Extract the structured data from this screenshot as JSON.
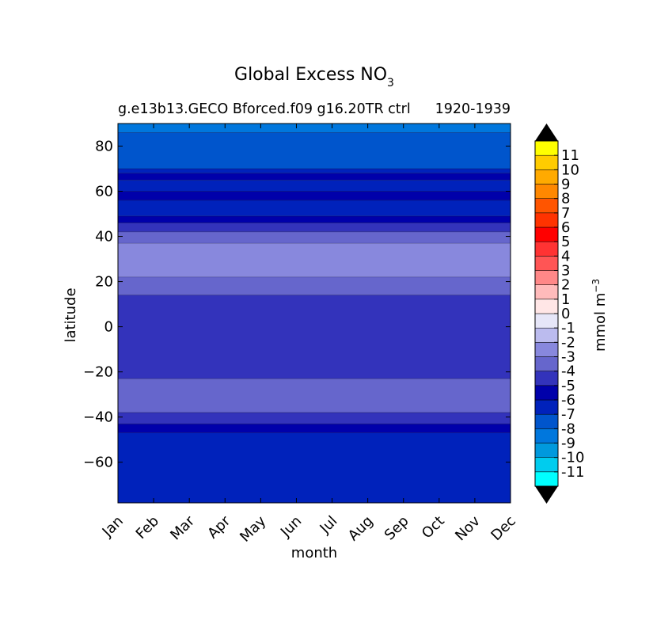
{
  "chart_data": {
    "type": "heatmap",
    "title_main": "Global Excess NO",
    "title_sub": "3",
    "subtitle_left": "g.e13b13.GECO Bforced.f09 g16.20TR ctrl",
    "subtitle_right": "1920-1939",
    "xlabel": "month",
    "ylabel": "latitude",
    "x_ticks": [
      "Jan",
      "Feb",
      "Mar",
      "Apr",
      "May",
      "Jun",
      "Jul",
      "Aug",
      "Sep",
      "Oct",
      "Nov",
      "Dec"
    ],
    "y_ticks": [
      "80",
      "60",
      "40",
      "20",
      "0",
      "−20",
      "−40",
      "−60"
    ],
    "y_tick_values": [
      80,
      60,
      40,
      20,
      0,
      -20,
      -40,
      -60
    ],
    "ylim": [
      -78,
      90
    ],
    "colorbar": {
      "label_main": "mmol m",
      "label_exp": "−3",
      "levels": [
        "-11",
        "-10",
        "-9",
        "-8",
        "-7",
        "-6",
        "-5",
        "-4",
        "-3",
        "-2",
        "-1",
        "0",
        "1",
        "2",
        "3",
        "4",
        "5",
        "6",
        "7",
        "8",
        "9",
        "10",
        "11"
      ],
      "level_values": [
        -11,
        -10,
        -9,
        -8,
        -7,
        -6,
        -5,
        -4,
        -3,
        -2,
        -1,
        0,
        1,
        2,
        3,
        4,
        5,
        6,
        7,
        8,
        9,
        10,
        11
      ],
      "colors": [
        "#00ffff",
        "#00ccee",
        "#0099dd",
        "#0077dd",
        "#0055cc",
        "#0022bb",
        "#0000aa",
        "#3333bb",
        "#6666cc",
        "#8888dd",
        "#bbbbee",
        "#e6e6f8",
        "#ffe6e6",
        "#ffbbbb",
        "#ff8888",
        "#ff5555",
        "#ff3333",
        "#ff0000",
        "#ff3300",
        "#ff5500",
        "#ff8800",
        "#ffaa00",
        "#ffcc00",
        "#ffff00"
      ],
      "extend_colors": [
        "#000000",
        "#000000"
      ]
    },
    "bands": [
      {
        "lat_min": 86,
        "lat_max": 90,
        "value": -8.5,
        "color": "#0077dd"
      },
      {
        "lat_min": 70,
        "lat_max": 86,
        "value": -7.5,
        "color": "#0055cc"
      },
      {
        "lat_min": 68,
        "lat_max": 70,
        "value": -6.5,
        "color": "#0022bb"
      },
      {
        "lat_min": 65,
        "lat_max": 68,
        "value": -5.5,
        "color": "#0000aa"
      },
      {
        "lat_min": 60,
        "lat_max": 65,
        "value": -6.5,
        "color": "#0022bb"
      },
      {
        "lat_min": 56,
        "lat_max": 60,
        "value": -5.5,
        "color": "#0000aa"
      },
      {
        "lat_min": 49,
        "lat_max": 56,
        "value": -6.5,
        "color": "#0022bb"
      },
      {
        "lat_min": 46,
        "lat_max": 49,
        "value": -5.5,
        "color": "#0000aa"
      },
      {
        "lat_min": 42,
        "lat_max": 46,
        "value": -4.5,
        "color": "#3333bb"
      },
      {
        "lat_min": 37,
        "lat_max": 42,
        "value": -3.5,
        "color": "#6666cc"
      },
      {
        "lat_min": 22,
        "lat_max": 37,
        "value": -2.5,
        "color": "#8888dd"
      },
      {
        "lat_min": 14,
        "lat_max": 22,
        "value": -3.5,
        "color": "#6666cc"
      },
      {
        "lat_min": -23,
        "lat_max": 14,
        "value": -4.5,
        "color": "#3333bb"
      },
      {
        "lat_min": -38,
        "lat_max": -23,
        "value": -3.5,
        "color": "#6666cc"
      },
      {
        "lat_min": -43,
        "lat_max": -38,
        "value": -4.5,
        "color": "#3333bb"
      },
      {
        "lat_min": -47,
        "lat_max": -43,
        "value": -5.5,
        "color": "#0000aa"
      },
      {
        "lat_min": -78,
        "lat_max": -47,
        "value": -6.5,
        "color": "#0022bb"
      }
    ]
  }
}
